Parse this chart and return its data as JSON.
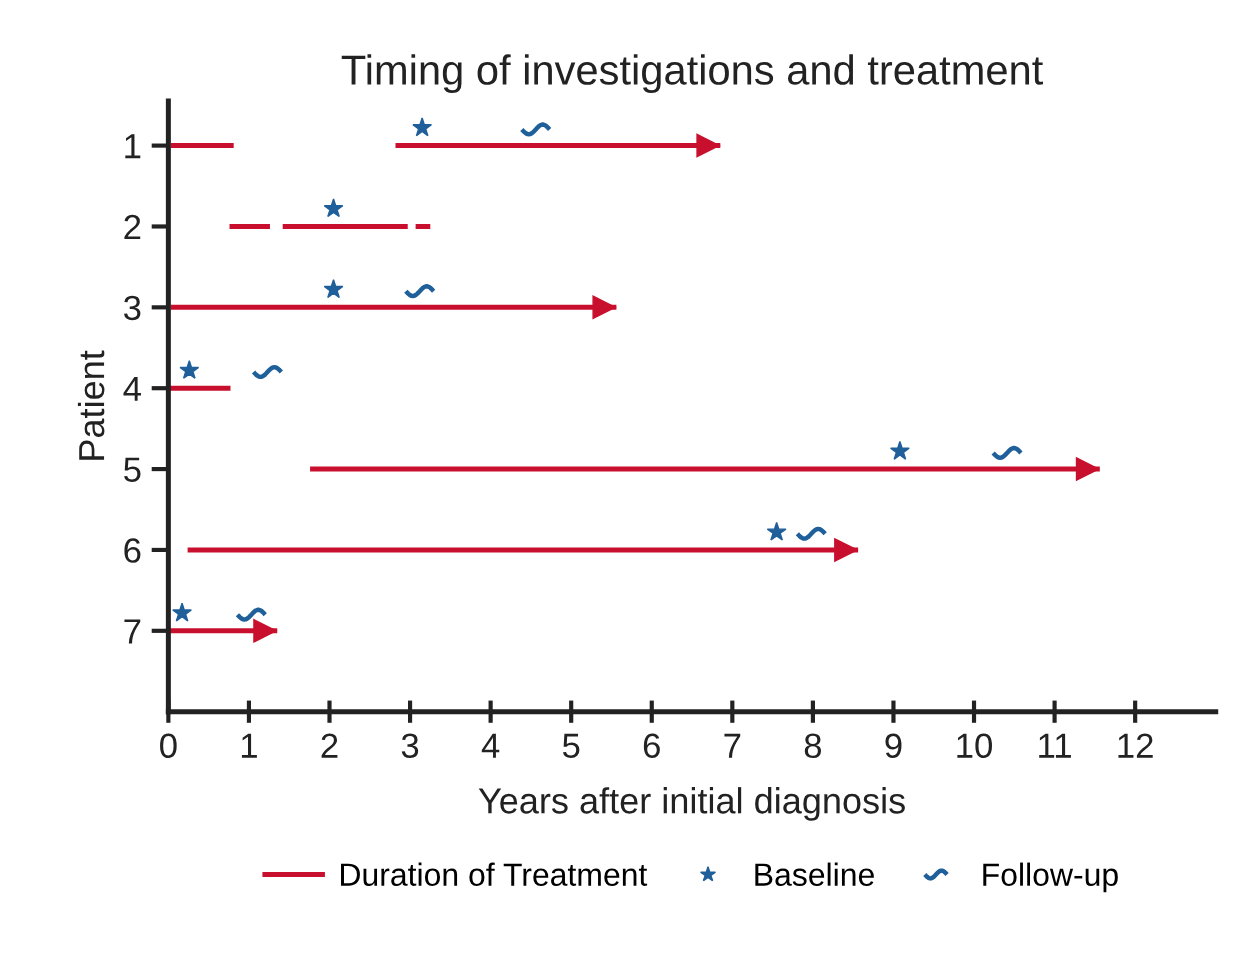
{
  "chart_data": {
    "type": "line",
    "title": "Timing of investigations and treatment",
    "xlabel": "Years after initial diagnosis",
    "ylabel": "Patient",
    "xlim": [
      0,
      13
    ],
    "xticks": [
      0,
      1,
      2,
      3,
      4,
      5,
      6,
      7,
      8,
      9,
      10,
      11,
      12
    ],
    "ylim": [
      8,
      0.45
    ],
    "yticks": [
      1,
      2,
      3,
      4,
      5,
      6,
      7
    ],
    "grid": false,
    "legend": "bottom",
    "line_style": "solid",
    "series": [
      {
        "name": "Duration of Treatment",
        "color": "#c8102e",
        "marker": "none",
        "x": [
          0.06,
          0.78,
          null,
          2.85,
          6.82,
          null,
          0.79,
          1.23,
          null,
          1.45,
          2.94,
          null,
          3.1,
          3.22,
          null,
          0.06,
          5.53,
          null,
          0,
          0.74,
          null,
          1.79,
          11.53,
          null,
          0.27,
          8.53,
          null,
          0,
          1.32
        ],
        "values": [
          1,
          1,
          null,
          1,
          1,
          null,
          2,
          2,
          null,
          2,
          2,
          null,
          2,
          2,
          null,
          3,
          3,
          null,
          4,
          4,
          null,
          5,
          5,
          null,
          6,
          6,
          null,
          7,
          7
        ]
      },
      {
        "type": "scatter",
        "color": "#c8102e",
        "marker": "triangle",
        "x": [
          6.7,
          5.41,
          11.41,
          8.41,
          1.2
        ],
        "values": [
          1,
          3,
          5,
          6,
          7
        ]
      },
      {
        "name": "Baseline",
        "type": "scatter",
        "color": "#1f5f9a",
        "marker": "star",
        "x": [
          3.15,
          2.05,
          2.05,
          0.26,
          9.08,
          7.55,
          0.17
        ],
        "values": [
          0.78,
          1.78,
          2.78,
          3.78,
          4.78,
          5.78,
          6.78
        ]
      },
      {
        "name": "Follow-up",
        "type": "scatter",
        "color": "#1f5f9a",
        "x": [
          4.56,
          3.12,
          1.23,
          10.41,
          7.98,
          1.03
        ],
        "values": [
          0.8,
          2.8,
          3.8,
          4.8,
          5.8,
          6.8
        ]
      }
    ]
  }
}
